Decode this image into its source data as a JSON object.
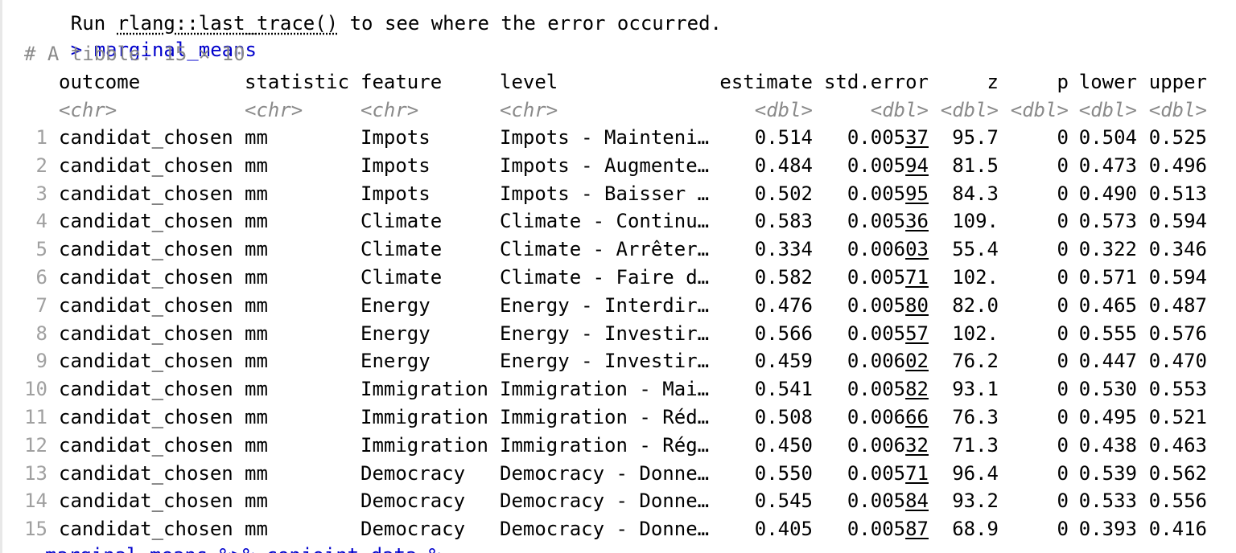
{
  "console": {
    "error_hint": {
      "prefix": "Run ",
      "code": "rlang::last_trace()",
      "suffix": " to see where the error occurred."
    },
    "prompt": ">",
    "command": "marginal_means",
    "tibble_header": "# A tibble: 15 × 10",
    "next_command": "marginal_means %>% conjoint_data %"
  },
  "colors": {
    "prompt_blue": "#0000cc",
    "meta_grey": "#8a8a8a"
  },
  "table": {
    "columns": [
      "outcome",
      "statistic",
      "feature",
      "level",
      "estimate",
      "std.error",
      "z",
      "p",
      "lower",
      "upper"
    ],
    "types": [
      "<chr>",
      "<chr>",
      "<chr>",
      "<chr>",
      "<dbl>",
      "<dbl>",
      "<dbl>",
      "<dbl>",
      "<dbl>",
      "<dbl>"
    ],
    "rows": [
      {
        "n": "1",
        "outcome": "candidat_chosen",
        "statistic": "mm",
        "feature": "Impots",
        "level": "Impots - Mainteni…",
        "estimate": "0.514",
        "se_a": "0.005",
        "se_b": "37",
        "z": "95.7",
        "p": "0",
        "lower": "0.504",
        "upper": "0.525"
      },
      {
        "n": "2",
        "outcome": "candidat_chosen",
        "statistic": "mm",
        "feature": "Impots",
        "level": "Impots - Augmente…",
        "estimate": "0.484",
        "se_a": "0.005",
        "se_b": "94",
        "z": "81.5",
        "p": "0",
        "lower": "0.473",
        "upper": "0.496"
      },
      {
        "n": "3",
        "outcome": "candidat_chosen",
        "statistic": "mm",
        "feature": "Impots",
        "level": "Impots - Baisser …",
        "estimate": "0.502",
        "se_a": "0.005",
        "se_b": "95",
        "z": "84.3",
        "p": "0",
        "lower": "0.490",
        "upper": "0.513"
      },
      {
        "n": "4",
        "outcome": "candidat_chosen",
        "statistic": "mm",
        "feature": "Climate",
        "level": "Climate - Continu…",
        "estimate": "0.583",
        "se_a": "0.005",
        "se_b": "36",
        "z": "109.",
        "p": "0",
        "lower": "0.573",
        "upper": "0.594"
      },
      {
        "n": "5",
        "outcome": "candidat_chosen",
        "statistic": "mm",
        "feature": "Climate",
        "level": "Climate - Arrêter…",
        "estimate": "0.334",
        "se_a": "0.006",
        "se_b": "03",
        "z": "55.4",
        "p": "0",
        "lower": "0.322",
        "upper": "0.346"
      },
      {
        "n": "6",
        "outcome": "candidat_chosen",
        "statistic": "mm",
        "feature": "Climate",
        "level": "Climate - Faire d…",
        "estimate": "0.582",
        "se_a": "0.005",
        "se_b": "71",
        "z": "102.",
        "p": "0",
        "lower": "0.571",
        "upper": "0.594"
      },
      {
        "n": "7",
        "outcome": "candidat_chosen",
        "statistic": "mm",
        "feature": "Energy",
        "level": "Energy - Interdir…",
        "estimate": "0.476",
        "se_a": "0.005",
        "se_b": "80",
        "z": "82.0",
        "p": "0",
        "lower": "0.465",
        "upper": "0.487"
      },
      {
        "n": "8",
        "outcome": "candidat_chosen",
        "statistic": "mm",
        "feature": "Energy",
        "level": "Energy - Investir…",
        "estimate": "0.566",
        "se_a": "0.005",
        "se_b": "57",
        "z": "102.",
        "p": "0",
        "lower": "0.555",
        "upper": "0.576"
      },
      {
        "n": "9",
        "outcome": "candidat_chosen",
        "statistic": "mm",
        "feature": "Energy",
        "level": "Energy - Investir…",
        "estimate": "0.459",
        "se_a": "0.006",
        "se_b": "02",
        "z": "76.2",
        "p": "0",
        "lower": "0.447",
        "upper": "0.470"
      },
      {
        "n": "10",
        "outcome": "candidat_chosen",
        "statistic": "mm",
        "feature": "Immigration",
        "level": "Immigration - Mai…",
        "estimate": "0.541",
        "se_a": "0.005",
        "se_b": "82",
        "z": "93.1",
        "p": "0",
        "lower": "0.530",
        "upper": "0.553"
      },
      {
        "n": "11",
        "outcome": "candidat_chosen",
        "statistic": "mm",
        "feature": "Immigration",
        "level": "Immigration - Réd…",
        "estimate": "0.508",
        "se_a": "0.006",
        "se_b": "66",
        "z": "76.3",
        "p": "0",
        "lower": "0.495",
        "upper": "0.521"
      },
      {
        "n": "12",
        "outcome": "candidat_chosen",
        "statistic": "mm",
        "feature": "Immigration",
        "level": "Immigration - Rég…",
        "estimate": "0.450",
        "se_a": "0.006",
        "se_b": "32",
        "z": "71.3",
        "p": "0",
        "lower": "0.438",
        "upper": "0.463"
      },
      {
        "n": "13",
        "outcome": "candidat_chosen",
        "statistic": "mm",
        "feature": "Democracy",
        "level": "Democracy - Donne…",
        "estimate": "0.550",
        "se_a": "0.005",
        "se_b": "71",
        "z": "96.4",
        "p": "0",
        "lower": "0.539",
        "upper": "0.562"
      },
      {
        "n": "14",
        "outcome": "candidat_chosen",
        "statistic": "mm",
        "feature": "Democracy",
        "level": "Democracy - Donne…",
        "estimate": "0.545",
        "se_a": "0.005",
        "se_b": "84",
        "z": "93.2",
        "p": "0",
        "lower": "0.533",
        "upper": "0.556"
      },
      {
        "n": "15",
        "outcome": "candidat_chosen",
        "statistic": "mm",
        "feature": "Democracy",
        "level": "Democracy - Donne…",
        "estimate": "0.405",
        "se_a": "0.005",
        "se_b": "87",
        "z": "68.9",
        "p": "0",
        "lower": "0.393",
        "upper": "0.416"
      }
    ]
  }
}
